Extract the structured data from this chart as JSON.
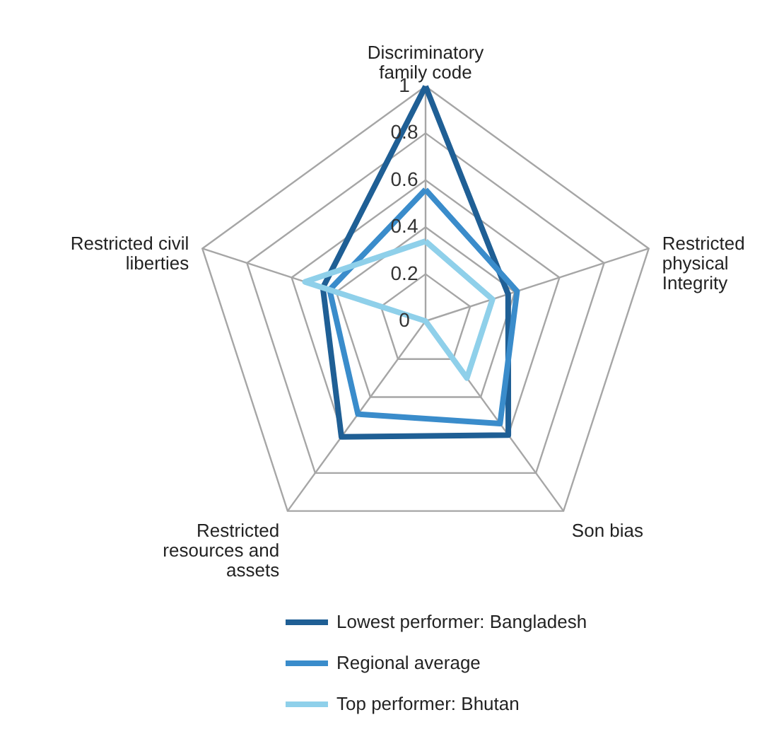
{
  "chart_data": {
    "type": "radar",
    "categories": [
      "Discriminatory family code",
      "Restricted physical Integrity",
      "Son bias",
      "Restricted resources and assets",
      "Restricted civil liberties"
    ],
    "ylim": [
      0,
      1
    ],
    "yticks": [
      0,
      0.2,
      0.4,
      0.6,
      0.8,
      1
    ],
    "grid": true,
    "legend": "bottom",
    "series": [
      {
        "name": "Lowest performer: Bangladesh",
        "color": "#1f5f95",
        "values": [
          1.0,
          0.37,
          0.6,
          0.61,
          0.46
        ]
      },
      {
        "name": "Regional average",
        "color": "#3a8ccb",
        "values": [
          0.56,
          0.41,
          0.54,
          0.49,
          0.43
        ]
      },
      {
        "name": "Top performer: Bhutan",
        "color": "#8fd0ea",
        "values": [
          0.34,
          0.3,
          0.3,
          0,
          0.54
        ]
      }
    ]
  }
}
